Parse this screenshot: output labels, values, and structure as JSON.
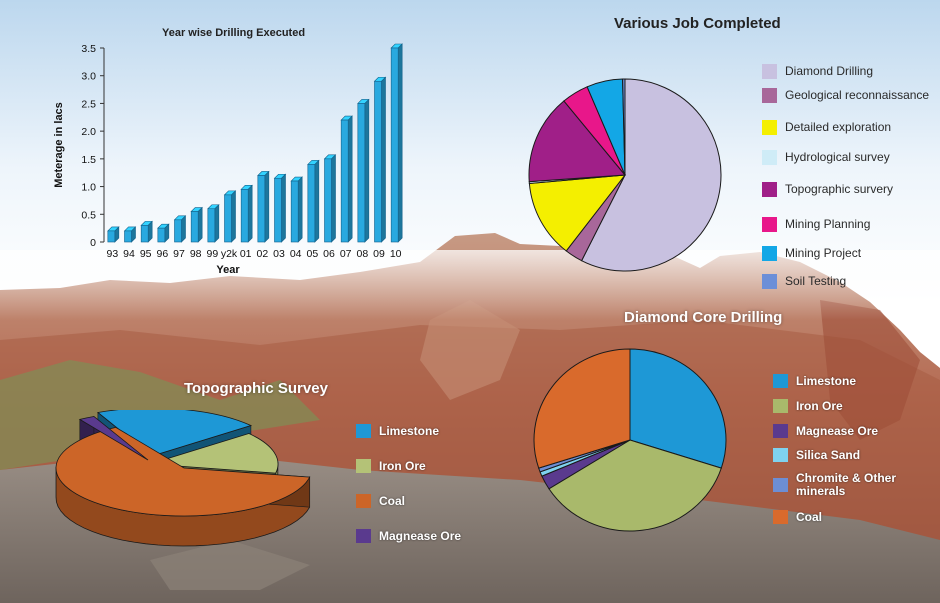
{
  "charts": {
    "drilling": {
      "chart_data": {
        "type": "bar",
        "title": "Year wise Drilling Executed",
        "xlabel": "Year",
        "ylabel": "Meterage in lacs",
        "ylim": [
          0,
          3.5
        ],
        "yticks": [
          "0",
          "0.5",
          "1.0",
          "1.5",
          "2.0",
          "2.5",
          "3.0",
          "3.5"
        ],
        "categories": [
          "93",
          "94",
          "95",
          "96",
          "97",
          "98",
          "99",
          "y2k",
          "01",
          "02",
          "03",
          "04",
          "05",
          "06",
          "07",
          "08",
          "09",
          "10"
        ],
        "values": [
          0.2,
          0.2,
          0.3,
          0.25,
          0.4,
          0.55,
          0.6,
          0.85,
          0.95,
          1.2,
          1.15,
          1.1,
          1.4,
          1.5,
          2.2,
          2.5,
          2.9,
          3.5
        ],
        "color": "#29a9df",
        "grid": false
      }
    },
    "jobs": {
      "chart_data": {
        "type": "pie",
        "title": "Various Job Completed",
        "labels": [
          "Diamond Drilling",
          "Geological reconnaissance",
          "Detailed exploration",
          "Hydrological survey",
          "Topographic survery",
          "Mining Planning",
          "Mining Project",
          "Soil Testing"
        ],
        "values": [
          57,
          3,
          13,
          0.3,
          15,
          4.5,
          6,
          0.4
        ],
        "colors": [
          "#c8c1e0",
          "#a8679a",
          "#f4ef00",
          "#cfecf7",
          "#a01f88",
          "#e8178a",
          "#13a7e6",
          "#6c8fd8"
        ],
        "legend": "right"
      }
    },
    "core": {
      "chart_data": {
        "type": "pie",
        "title": "Diamond Core Drilling",
        "labels": [
          "Limestone",
          "Iron Ore",
          "Magnease Ore",
          "Silica Sand",
          "Chromite & Other minerals",
          "Coal"
        ],
        "values": [
          30,
          36,
          2.5,
          0.8,
          0.7,
          30
        ],
        "colors": [
          "#1e98d6",
          "#a9b96b",
          "#5a3a8e",
          "#7fd2ef",
          "#6d8ed4",
          "#d96a2c"
        ],
        "legend": "right"
      }
    },
    "topo": {
      "chart_data": {
        "type": "pie",
        "title": "Topographic Survey",
        "labels": [
          "Limestone",
          "Iron Ore",
          "Coal",
          "Magnease Ore"
        ],
        "values": [
          21,
          14,
          63,
          2
        ],
        "colors": [
          "#1e98d6",
          "#b4c277",
          "#cc6528",
          "#5a3a8e"
        ],
        "legend": "right",
        "style": "3d-exploded"
      }
    }
  }
}
